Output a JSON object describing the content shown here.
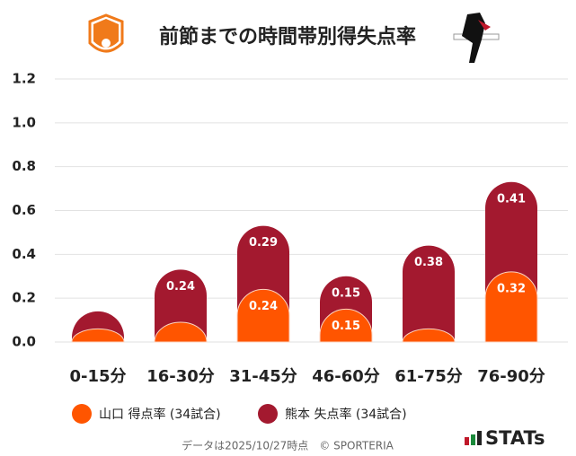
{
  "chart_data": {
    "type": "bar",
    "stacked": true,
    "title": "前節までの時間帯別得失点率",
    "categories": [
      "0-15分",
      "16-30分",
      "31-45分",
      "46-60分",
      "61-75分",
      "76-90分"
    ],
    "series": [
      {
        "name": "山口 得点率 (34試合)",
        "color": "#ff5500",
        "values": [
          0.06,
          0.09,
          0.24,
          0.15,
          0.06,
          0.32
        ],
        "value_labels": [
          null,
          null,
          "0.24",
          "0.15",
          null,
          "0.32"
        ]
      },
      {
        "name": "熊本 失点率 (34試合)",
        "color": "#a3192f",
        "values": [
          0.08,
          0.24,
          0.29,
          0.15,
          0.38,
          0.41
        ],
        "value_labels": [
          null,
          "0.24",
          "0.29",
          "0.15",
          "0.38",
          "0.41"
        ]
      }
    ],
    "ylim": [
      0,
      1.2
    ],
    "yticks": [
      {
        "value": 0,
        "label": "0.0"
      },
      0.2,
      0.4,
      0.6,
      0.8,
      {
        "value": 1,
        "label": "1.0"
      },
      1.2
    ],
    "grid": true
  },
  "footer": {
    "note": "データは2025/10/27時点　© SPORTERIA",
    "brand": "STATs"
  }
}
